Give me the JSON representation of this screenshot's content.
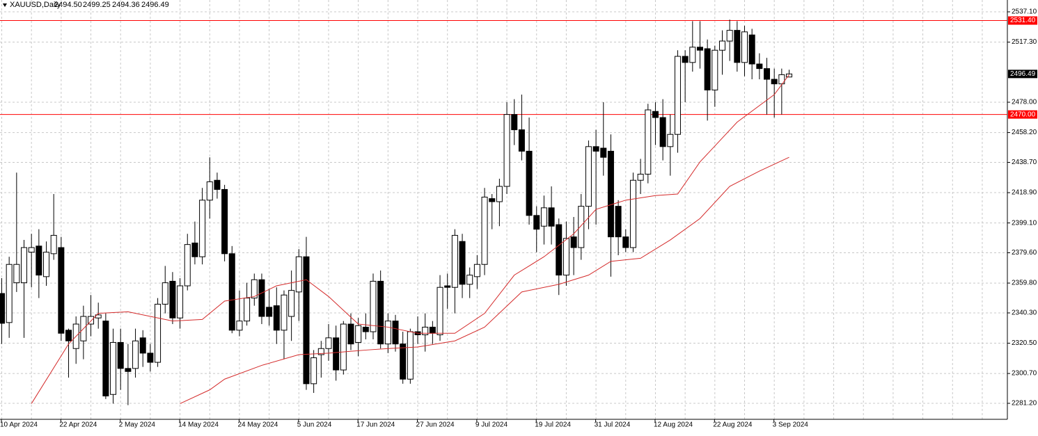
{
  "chart_data": {
    "type": "candlestick",
    "title": "XAUUSD,Daily",
    "header_prices": [
      {
        "value": 2494.5,
        "label": "2494.50"
      },
      {
        "value": 2499.25,
        "label": "2499.25"
      },
      {
        "value": 2494.36,
        "label": "2494.36"
      },
      {
        "value": 2496.49,
        "label": "2496.49"
      }
    ],
    "categories": [
      "10 Apr 2024",
      null,
      null,
      null,
      null,
      null,
      null,
      null,
      "22 Apr 2024",
      null,
      null,
      null,
      null,
      null,
      null,
      null,
      "2 May 2024",
      null,
      null,
      null,
      null,
      null,
      null,
      null,
      "14 May 2024",
      null,
      null,
      null,
      null,
      null,
      null,
      null,
      "24 May 2024",
      null,
      null,
      null,
      null,
      null,
      null,
      null,
      "5 Jun 2024",
      null,
      null,
      null,
      null,
      null,
      null,
      null,
      "17 Jun 2024",
      null,
      null,
      null,
      null,
      null,
      null,
      null,
      "27 Jun 2024",
      null,
      null,
      null,
      null,
      null,
      null,
      null,
      "9 Jul 2024",
      null,
      null,
      null,
      null,
      null,
      null,
      null,
      "19 Jul 2024",
      null,
      null,
      null,
      null,
      null,
      null,
      null,
      "31 Jul 2024",
      null,
      null,
      null,
      null,
      null,
      null,
      null,
      "12 Aug 2024",
      null,
      null,
      null,
      null,
      null,
      null,
      null,
      "22 Aug 2024",
      null,
      null,
      null,
      null,
      null,
      null,
      null,
      "3 Sep 2024",
      null,
      null
    ],
    "open": [
      2353,
      2334,
      2360,
      2360,
      2380,
      2384,
      2364,
      2379,
      2383,
      2329,
      2317,
      2322,
      2333,
      2337,
      2335,
      2287,
      2321,
      2304,
      2304,
      2324,
      2314,
      2308,
      2346,
      2361,
      2337,
      2358,
      2386,
      2377,
      2414,
      2427,
      2421,
      2379,
      2329,
      2335,
      2350,
      2362,
      2344,
      2345,
      2329,
      2338,
      2354,
      2377,
      2294,
      2313,
      2317,
      2324,
      2303,
      2333,
      2321,
      2331,
      2328,
      2361,
      2320,
      2335,
      2320,
      2297,
      2328,
      2326,
      2331,
      2326,
      2358,
      2357,
      2387,
      2359,
      2364,
      2372,
      2415,
      2413,
      2423,
      2470,
      2460,
      2446,
      2404,
      2397,
      2409,
      2398,
      2365,
      2390,
      2383,
      2410,
      2449,
      2448,
      2446,
      2410,
      2390,
      2383,
      2427,
      2431,
      2472,
      2468,
      2449,
      2457,
      2508,
      2504,
      2514,
      2513,
      2486,
      2512,
      2518,
      2525,
      2504,
      2522,
      2503,
      2500,
      2493,
      2490,
      2494.5
    ],
    "high": [
      2363,
      2377,
      2432,
      2388,
      2392,
      2395,
      2387,
      2418,
      2390,
      2330,
      2338,
      2345,
      2352,
      2347,
      2340,
      2330,
      2330,
      2320,
      2330,
      2329,
      2320,
      2350,
      2371,
      2367,
      2363,
      2392,
      2400,
      2422,
      2442,
      2432,
      2424,
      2384,
      2355,
      2360,
      2366,
      2366,
      2356,
      2357,
      2355,
      2368,
      2382,
      2390,
      2316,
      2322,
      2333,
      2332,
      2335,
      2340,
      2337,
      2340,
      2366,
      2368,
      2340,
      2339,
      2328,
      2330,
      2338,
      2340,
      2335,
      2365,
      2366,
      2395,
      2392,
      2370,
      2378,
      2422,
      2418,
      2428,
      2478,
      2480,
      2483,
      2468,
      2410,
      2417,
      2423,
      2402,
      2400,
      2403,
      2418,
      2453,
      2460,
      2478,
      2457,
      2414,
      2395,
      2432,
      2441,
      2477,
      2478,
      2480,
      2470,
      2512,
      2512,
      2531,
      2531,
      2519,
      2515,
      2525,
      2532,
      2531,
      2528,
      2526,
      2510,
      2507,
      2500,
      2500,
      2499.25
    ],
    "low": [
      2320,
      2324,
      2354,
      2324,
      2357,
      2350,
      2358,
      2375,
      2322,
      2298,
      2307,
      2310,
      2325,
      2330,
      2284,
      2281,
      2290,
      2280,
      2298,
      2305,
      2302,
      2305,
      2340,
      2333,
      2330,
      2355,
      2372,
      2372,
      2402,
      2415,
      2374,
      2327,
      2325,
      2332,
      2345,
      2333,
      2332,
      2320,
      2310,
      2322,
      2335,
      2290,
      2288,
      2298,
      2309,
      2296,
      2300,
      2316,
      2312,
      2323,
      2323,
      2317,
      2314,
      2315,
      2294,
      2294,
      2320,
      2315,
      2320,
      2322,
      2343,
      2340,
      2350,
      2350,
      2356,
      2365,
      2395,
      2397,
      2418,
      2450,
      2440,
      2398,
      2380,
      2385,
      2385,
      2352,
      2358,
      2365,
      2375,
      2395,
      2398,
      2430,
      2364,
      2378,
      2380,
      2380,
      2418,
      2425,
      2450,
      2440,
      2430,
      2445,
      2478,
      2498,
      2500,
      2466,
      2475,
      2496,
      2505,
      2498,
      2495,
      2493,
      2493,
      2470,
      2468,
      2470,
      2494.36
    ],
    "close": [
      2333.5,
      2372,
      2372,
      2383,
      2383,
      2365,
      2380,
      2391,
      2327,
      2322,
      2333,
      2338,
      2338,
      2339,
      2286,
      2321,
      2304,
      2302,
      2322,
      2314,
      2308,
      2346,
      2360,
      2337,
      2358,
      2385,
      2377,
      2414,
      2426,
      2421,
      2379,
      2329,
      2335,
      2350,
      2362,
      2338,
      2338,
      2329,
      2352,
      2355,
      2377,
      2294,
      2311,
      2317,
      2324,
      2303,
      2333,
      2320,
      2332,
      2328,
      2361,
      2320,
      2335,
      2320,
      2297,
      2328,
      2326,
      2331,
      2327,
      2357,
      2357,
      2391,
      2359,
      2365,
      2372,
      2416,
      2413,
      2423,
      2470,
      2460,
      2446,
      2404,
      2395,
      2409,
      2397,
      2365,
      2389,
      2383,
      2410,
      2449,
      2446,
      2442,
      2390,
      2390,
      2383,
      2427,
      2431,
      2473,
      2468,
      2449,
      2457,
      2508,
      2504,
      2514,
      2512,
      2486,
      2512,
      2518,
      2525,
      2504,
      2524,
      2503,
      2500,
      2493,
      2490,
      2496,
      2496.49
    ],
    "series": [
      {
        "color": "#d42a2a",
        "x": [
          4,
          9,
          13,
          17,
          23,
          27,
          30,
          34,
          37,
          41,
          44,
          48,
          52,
          56,
          61,
          65,
          69,
          73,
          77,
          80,
          84,
          88,
          91,
          94,
          99,
          104,
          106
        ],
        "values": [
          2281,
          2320,
          2340,
          2341,
          2335,
          2336,
          2348,
          2351,
          2358,
          2362,
          2351,
          2333,
          2331,
          2327,
          2327,
          2340,
          2365,
          2377,
          2392,
          2408,
          2414,
          2417,
          2418,
          2439,
          2465,
          2483,
          2496
        ]
      },
      {
        "color": "#d42a2a",
        "x": [
          24,
          28,
          30,
          35,
          40,
          44,
          49,
          52,
          56,
          61,
          65,
          70,
          75,
          79,
          82,
          86,
          90,
          94,
          98,
          102,
          106
        ],
        "values": [
          2281,
          2290,
          2297,
          2306,
          2313,
          2314,
          2316,
          2317,
          2318,
          2322,
          2331,
          2354,
          2359,
          2365,
          2374,
          2376,
          2388,
          2402,
          2423,
          2433,
          2442
        ]
      }
    ],
    "levels": [
      {
        "value": 2531.4,
        "label": "2531.40"
      },
      {
        "value": 2470,
        "label": "2470.00"
      }
    ],
    "level_color": "#ff0000",
    "last_price": {
      "value": 2496.49,
      "label": "2496.49"
    },
    "ylim": [
      2273.0,
      2542.0
    ],
    "yticks": [
      {
        "value": 2537.1,
        "label": "2537.10"
      },
      {
        "value": 2517.3,
        "label": "2517.30"
      },
      {
        "value": 2478,
        "label": "2478.00"
      },
      {
        "value": 2458.2,
        "label": "2458.20"
      },
      {
        "value": 2438.7,
        "label": "2438.70"
      },
      {
        "value": 2418.9,
        "label": "2418.90"
      },
      {
        "value": 2399.1,
        "label": "2399.10"
      },
      {
        "value": 2379.6,
        "label": "2379.60"
      },
      {
        "value": 2359.8,
        "label": "2359.80"
      },
      {
        "value": 2340.3,
        "label": "2340.30"
      },
      {
        "value": 2320.5,
        "label": "2320.50"
      },
      {
        "value": 2300.7,
        "label": "2300.70"
      },
      {
        "value": 2281.2,
        "label": "2281.20"
      }
    ],
    "grid": true
  }
}
